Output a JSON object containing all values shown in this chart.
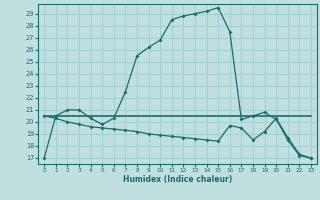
{
  "xlabel": "Humidex (Indice chaleur)",
  "bg_color": "#c0e0e0",
  "line_color": "#1a6b6b",
  "grid_color": "#9ecece",
  "xlim": [
    -0.5,
    23.5
  ],
  "ylim": [
    16.5,
    29.8
  ],
  "yticks": [
    17,
    18,
    19,
    20,
    21,
    22,
    23,
    24,
    25,
    26,
    27,
    28,
    29
  ],
  "xticks": [
    0,
    1,
    2,
    3,
    4,
    5,
    6,
    7,
    8,
    9,
    10,
    11,
    12,
    13,
    14,
    15,
    16,
    17,
    18,
    19,
    20,
    21,
    22,
    23
  ],
  "curve1_x": [
    0,
    1,
    2,
    3,
    4,
    5,
    6,
    7,
    8,
    9,
    10,
    11,
    12,
    13,
    14,
    15,
    16,
    17,
    18,
    19,
    20,
    21,
    22,
    23
  ],
  "curve1_y": [
    17.0,
    20.5,
    21.0,
    21.0,
    20.3,
    19.8,
    20.3,
    22.5,
    25.5,
    26.2,
    26.8,
    28.5,
    28.8,
    29.0,
    29.2,
    29.5,
    27.5,
    20.2,
    20.5,
    20.8,
    20.2,
    18.5,
    17.2,
    17.0
  ],
  "curve2_x": [
    0,
    1,
    2,
    3,
    4,
    5,
    6,
    7,
    8,
    9,
    10,
    11,
    12,
    13,
    14,
    15,
    16,
    17,
    18,
    19,
    20,
    21,
    22,
    23
  ],
  "curve2_y": [
    20.5,
    20.5,
    20.5,
    20.5,
    20.5,
    20.5,
    20.5,
    20.5,
    20.5,
    20.5,
    20.5,
    20.5,
    20.5,
    20.5,
    20.5,
    20.5,
    20.5,
    20.5,
    20.5,
    20.5,
    20.5,
    20.5,
    20.5,
    20.5
  ],
  "curve3_x": [
    0,
    1,
    2,
    3,
    4,
    5,
    6,
    7,
    8,
    9,
    10,
    11,
    12,
    13,
    14,
    15,
    16,
    17,
    18,
    19,
    20,
    21,
    22,
    23
  ],
  "curve3_y": [
    20.5,
    20.3,
    20.0,
    19.8,
    19.6,
    19.5,
    19.4,
    19.3,
    19.2,
    19.0,
    18.9,
    18.8,
    18.7,
    18.6,
    18.5,
    18.4,
    19.7,
    19.5,
    18.5,
    19.2,
    20.3,
    18.7,
    17.3,
    17.0
  ]
}
